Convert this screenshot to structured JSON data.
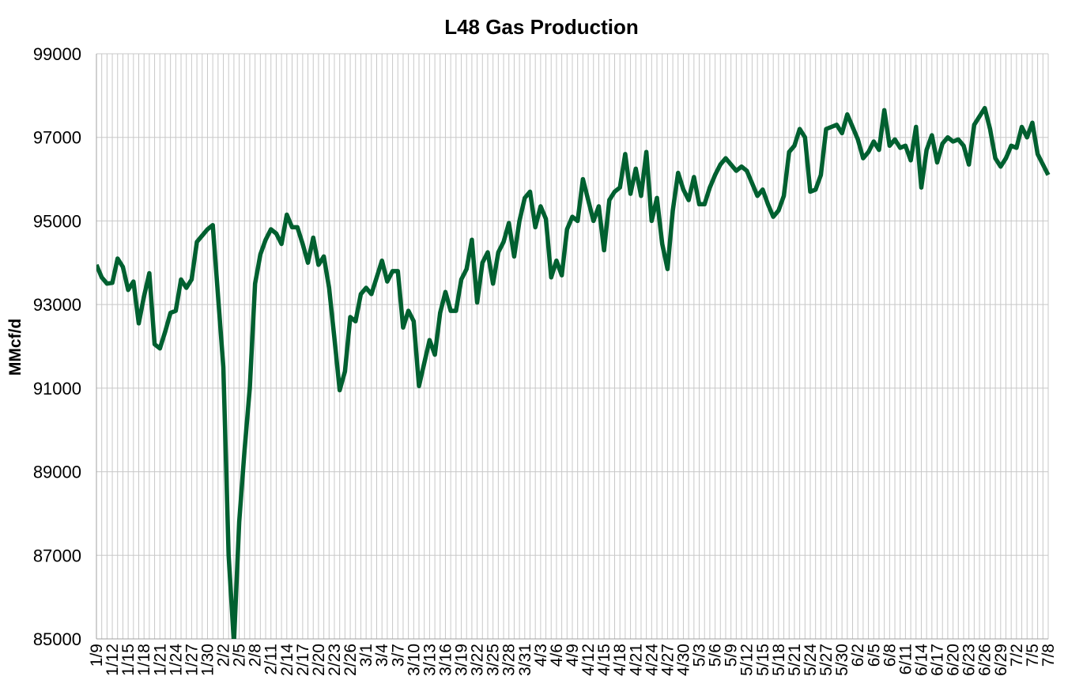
{
  "chart_data": {
    "type": "line",
    "title": "L48 Gas Production",
    "xlabel": "",
    "ylabel": "MMcf/d",
    "ylim": [
      85000,
      99000
    ],
    "yticks": [
      85000,
      87000,
      89000,
      91000,
      93000,
      95000,
      97000,
      99000
    ],
    "grid": true,
    "legend": "none",
    "line_color": "#006030",
    "grid_color": "#c8c8c8",
    "x_tick_labels": [
      "1/9",
      "1/12",
      "1/15",
      "1/18",
      "1/21",
      "1/24",
      "1/27",
      "1/30",
      "2/2",
      "2/5",
      "2/8",
      "2/11",
      "2/14",
      "2/17",
      "2/20",
      "2/23",
      "2/26",
      "3/1",
      "3/4",
      "3/7",
      "3/10",
      "3/13",
      "3/16",
      "3/19",
      "3/22",
      "3/25",
      "3/28",
      "3/31",
      "4/3",
      "4/6",
      "4/9",
      "4/12",
      "4/15",
      "4/18",
      "4/21",
      "4/24",
      "4/27",
      "4/30",
      "5/3",
      "5/6",
      "5/9",
      "5/12",
      "5/15",
      "5/18",
      "5/21",
      "5/24",
      "5/27",
      "5/30",
      "6/2",
      "6/5",
      "6/8",
      "6/11",
      "6/14",
      "6/17",
      "6/20",
      "6/23",
      "6/26",
      "6/29",
      "7/2",
      "7/5",
      "7/8"
    ],
    "x": [
      "1/9",
      "1/10",
      "1/11",
      "1/12",
      "1/13",
      "1/14",
      "1/15",
      "1/16",
      "1/17",
      "1/18",
      "1/19",
      "1/20",
      "1/21",
      "1/22",
      "1/23",
      "1/24",
      "1/25",
      "1/26",
      "1/27",
      "1/28",
      "1/29",
      "1/30",
      "1/31",
      "2/1",
      "2/2",
      "2/3",
      "2/4",
      "2/5",
      "2/6",
      "2/7",
      "2/8",
      "2/9",
      "2/10",
      "2/11",
      "2/12",
      "2/13",
      "2/14",
      "2/15",
      "2/16",
      "2/17",
      "2/18",
      "2/19",
      "2/20",
      "2/21",
      "2/22",
      "2/23",
      "2/24",
      "2/25",
      "2/26",
      "2/27",
      "2/28",
      "3/1",
      "3/2",
      "3/3",
      "3/4",
      "3/5",
      "3/6",
      "3/7",
      "3/8",
      "3/9",
      "3/10",
      "3/11",
      "3/12",
      "3/13",
      "3/14",
      "3/15",
      "3/16",
      "3/17",
      "3/18",
      "3/19",
      "3/20",
      "3/21",
      "3/22",
      "3/23",
      "3/24",
      "3/25",
      "3/26",
      "3/27",
      "3/28",
      "3/29",
      "3/30",
      "3/31",
      "4/1",
      "4/2",
      "4/3",
      "4/4",
      "4/5",
      "4/6",
      "4/7",
      "4/8",
      "4/9",
      "4/10",
      "4/11",
      "4/12",
      "4/13",
      "4/14",
      "4/15",
      "4/16",
      "4/17",
      "4/18",
      "4/19",
      "4/20",
      "4/21",
      "4/22",
      "4/23",
      "4/24",
      "4/25",
      "4/26",
      "4/27",
      "4/28",
      "4/29",
      "4/30",
      "5/1",
      "5/2",
      "5/3",
      "5/4",
      "5/5",
      "5/6",
      "5/7",
      "5/8",
      "5/9",
      "5/10",
      "5/11",
      "5/12",
      "5/13",
      "5/14",
      "5/15",
      "5/16",
      "5/17",
      "5/18",
      "5/19",
      "5/20",
      "5/21",
      "5/22",
      "5/23",
      "5/24",
      "5/25",
      "5/26",
      "5/27",
      "5/28",
      "5/29",
      "5/30",
      "5/31",
      "6/1",
      "6/2",
      "6/3",
      "6/4",
      "6/5",
      "6/6",
      "6/7",
      "6/8",
      "6/9",
      "6/10",
      "6/11",
      "6/12",
      "6/13",
      "6/14",
      "6/15",
      "6/16",
      "6/17",
      "6/18",
      "6/19",
      "6/20",
      "6/21",
      "6/22",
      "6/23",
      "6/24",
      "6/25",
      "6/26",
      "6/27",
      "6/28",
      "6/29",
      "6/30",
      "7/1",
      "7/2",
      "7/3",
      "7/4",
      "7/5",
      "7/6",
      "7/7",
      "7/8"
    ],
    "series": [
      {
        "values": [
          93950,
          93650,
          93500,
          93520,
          94100,
          93900,
          93350,
          93550,
          92550,
          93200,
          93750,
          92050,
          91950,
          92350,
          92800,
          92850,
          93600,
          93400,
          93600,
          94500,
          94650,
          94800,
          94900,
          93200,
          91500,
          87000,
          84900,
          87800,
          89500,
          91000,
          93500,
          94200,
          94550,
          94800,
          94700,
          94450,
          95150,
          94850,
          94850,
          94450,
          94000,
          94600,
          93950,
          94150,
          93400,
          92200,
          90950,
          91400,
          92700,
          92600,
          93250,
          93400,
          93250,
          93650,
          94050,
          93550,
          93800,
          93800,
          92450,
          92850,
          92600,
          91050,
          91600,
          92150,
          91800,
          92800,
          93300,
          92850,
          92850,
          93600,
          93850,
          94550,
          93050,
          94000,
          94250,
          93500,
          94250,
          94500,
          94950,
          94150,
          95000,
          95550,
          95700,
          94850,
          95350,
          95050,
          93650,
          94050,
          93700,
          94800,
          95100,
          95000,
          96000,
          95500,
          95000,
          95350,
          94300,
          95500,
          95700,
          95800,
          96600,
          95650,
          96250,
          95600,
          96650,
          95000,
          95550,
          94450,
          93850,
          95250,
          96150,
          95750,
          95500,
          96050,
          95400,
          95400,
          95800,
          96100,
          96350,
          96500,
          96350,
          96200,
          96300,
          96200,
          95900,
          95600,
          95750,
          95400,
          95100,
          95250,
          95600,
          96650,
          96800,
          97200,
          97000,
          95700,
          95750,
          96100,
          97200,
          97250,
          97300,
          97100,
          97550,
          97250,
          96950,
          96500,
          96650,
          96900,
          96700,
          97650,
          96800,
          96950,
          96750,
          96800,
          96450,
          97250,
          95800,
          96700,
          97050,
          96400,
          96850,
          97000,
          96900,
          96950,
          96800,
          96350,
          97300,
          97500,
          97700,
          97200,
          96500,
          96300,
          96500,
          96800,
          96750,
          97250,
          97000,
          97350,
          96600,
          96350,
          96100
        ]
      }
    ]
  }
}
